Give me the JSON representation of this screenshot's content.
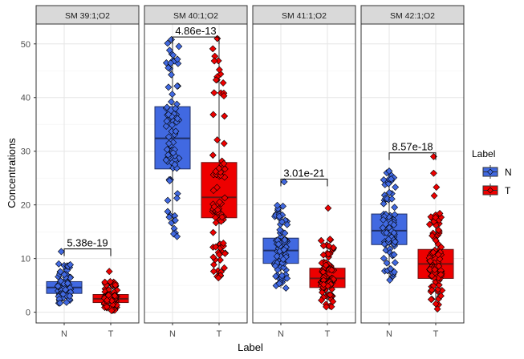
{
  "chart_data": {
    "type": "boxplot",
    "xlabel": "Label",
    "ylabel": "Concentrations",
    "ylim": [
      -2,
      53.7
    ],
    "yticks": [
      0,
      10,
      20,
      30,
      40,
      50
    ],
    "grid": true,
    "legend": {
      "title": "Label",
      "placement": "right",
      "entries": [
        {
          "label": "N",
          "color": "#4169E1"
        },
        {
          "label": "T",
          "color": "#EE0000"
        }
      ]
    },
    "categories": [
      "N",
      "T"
    ],
    "facets": [
      {
        "title": "SM 39:1;O2",
        "pvalue": "5.38e-19",
        "bracket_y": 11.8,
        "boxes": [
          {
            "group": "N",
            "whisker_low": 1.7,
            "q1": 3.5,
            "median": 4.6,
            "q3": 5.7,
            "whisker_high": 9.0,
            "outliers": [
              11.3
            ]
          },
          {
            "group": "T",
            "whisker_low": 0.3,
            "q1": 1.8,
            "median": 2.5,
            "q3": 3.3,
            "whisker_high": 5.7,
            "outliers": [
              7.6
            ]
          }
        ]
      },
      {
        "title": "SM 40:1;O2",
        "pvalue": "4.86e-13",
        "bracket_y": 51.3,
        "boxes": [
          {
            "group": "N",
            "whisker_low": 14.1,
            "q1": 26.7,
            "median": 32.4,
            "q3": 38.3,
            "whisker_high": 50.8,
            "outliers": []
          },
          {
            "group": "T",
            "whisker_low": 6.4,
            "q1": 17.6,
            "median": 21.4,
            "q3": 27.9,
            "whisker_high": 51.0,
            "outliers": []
          }
        ]
      },
      {
        "title": "SM 41:1;O2",
        "pvalue": "3.01e-21",
        "bracket_y": 24.8,
        "boxes": [
          {
            "group": "N",
            "whisker_low": 4.5,
            "q1": 9.1,
            "median": 11.5,
            "q3": 13.8,
            "whisker_high": 19.9,
            "outliers": [
              24.3
            ]
          },
          {
            "group": "T",
            "whisker_low": 1.0,
            "q1": 4.6,
            "median": 6.3,
            "q3": 8.2,
            "whisker_high": 13.6,
            "outliers": [
              19.4
            ]
          }
        ]
      },
      {
        "title": "SM 42:1;O2",
        "pvalue": "8.57e-18",
        "bracket_y": 29.7,
        "boxes": [
          {
            "group": "N",
            "whisker_low": 6.0,
            "q1": 12.6,
            "median": 15.2,
            "q3": 18.3,
            "whisker_high": 26.3,
            "outliers": []
          },
          {
            "group": "T",
            "whisker_low": 0.6,
            "q1": 6.3,
            "median": 9.0,
            "q3": 11.7,
            "whisker_high": 18.4,
            "outliers": [
              21.7,
              23.3,
              25.9,
              29.0
            ]
          }
        ]
      }
    ]
  }
}
